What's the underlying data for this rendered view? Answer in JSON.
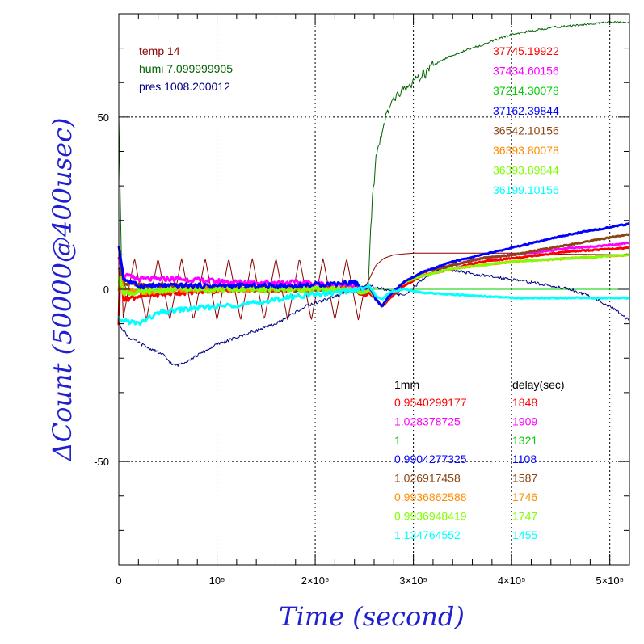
{
  "chart_data": {
    "type": "line",
    "xlabel": "Time (second)",
    "ylabel": "ΔCount (50000@400usec)",
    "xlim": [
      0,
      520000
    ],
    "ylim": [
      -80,
      80
    ],
    "grid": true,
    "x_ticks": [
      {
        "value": 0,
        "label": "0"
      },
      {
        "value": 100000,
        "label": "10⁵"
      },
      {
        "value": 200000,
        "label": "2×10⁵"
      },
      {
        "value": 300000,
        "label": "3×10⁵"
      },
      {
        "value": 400000,
        "label": "4×10⁵"
      },
      {
        "value": 500000,
        "label": "5×10⁵"
      }
    ],
    "y_ticks": [
      {
        "value": -50,
        "label": "-50"
      },
      {
        "value": 0,
        "label": "0"
      },
      {
        "value": 50,
        "label": "50"
      }
    ],
    "env_legend": [
      {
        "label": "temp 14",
        "color": "#8b0000"
      },
      {
        "label": "humi 7.099999905",
        "color": "#006400"
      },
      {
        "label": "pres 1008.200012",
        "color": "#000080"
      }
    ],
    "top_right_values": [
      {
        "label": "37745.19922",
        "color": "#ff0000"
      },
      {
        "label": "37434.60156",
        "color": "#ff00ff"
      },
      {
        "label": "37214.30078",
        "color": "#00cc00"
      },
      {
        "label": "37162.39844",
        "color": "#0000ff"
      },
      {
        "label": "36542.10156",
        "color": "#8b4513"
      },
      {
        "label": "36393.80078",
        "color": "#ff8c00"
      },
      {
        "label": "36393.89844",
        "color": "#7fff00"
      },
      {
        "label": "36199.10156",
        "color": "#00ffff"
      }
    ],
    "table_headers": [
      "1mm",
      "delay(sec)"
    ],
    "table_rows": [
      {
        "ratio": "0.9540299177",
        "delay": "1848",
        "color": "#ff0000"
      },
      {
        "ratio": "1.028378725",
        "delay": "1909",
        "color": "#ff00ff"
      },
      {
        "ratio": "1",
        "delay": "1321",
        "color": "#00cc00"
      },
      {
        "ratio": "0.9904277325",
        "delay": "1108",
        "color": "#0000ff"
      },
      {
        "ratio": "1.026917458",
        "delay": "1587",
        "color": "#8b4513"
      },
      {
        "ratio": "0.9936862588",
        "delay": "1746",
        "color": "#ff8c00"
      },
      {
        "ratio": "0.9936948419",
        "delay": "1747",
        "color": "#7fff00"
      },
      {
        "ratio": "1.134764552",
        "delay": "1455",
        "color": "#00ffff"
      }
    ],
    "series": [
      {
        "color": "#006400",
        "width": 1,
        "kind": "humi",
        "x": [
          0,
          3000,
          8000,
          20000,
          60000,
          100000,
          150000,
          200000,
          245000,
          254000,
          256000,
          258000,
          262000,
          267000,
          272000,
          280000,
          290000,
          300000,
          310000,
          320000,
          340000,
          360000,
          380000,
          400000,
          420000,
          440000,
          460000,
          480000,
          500000,
          520000
        ],
        "y": [
          50,
          3,
          0,
          -1,
          -1,
          0,
          0,
          0,
          0,
          0,
          15,
          25,
          38,
          45,
          50,
          55,
          58,
          60,
          62,
          65,
          68,
          70,
          72,
          74,
          75,
          76,
          76.5,
          77,
          77.5,
          77.5
        ]
      },
      {
        "color": "#00cc00",
        "width": 1,
        "kind": "flat",
        "x": [
          0,
          20000,
          100000,
          200000,
          255000,
          260000,
          520000
        ],
        "y": [
          0,
          0,
          0,
          0,
          0,
          0,
          0
        ]
      },
      {
        "color": "#8b0000",
        "width": 1,
        "kind": "temp",
        "x": [
          0,
          250000,
          255000,
          262000,
          270000,
          280000,
          300000,
          330000,
          360000,
          400000,
          450000,
          520000
        ],
        "y": [
          0,
          0,
          3,
          7,
          9,
          10,
          10.5,
          10.5,
          10.5,
          10.5,
          10.2,
          10
        ],
        "osc_amp": 9,
        "osc_period": 24000,
        "osc_end": 250000
      },
      {
        "color": "#000080",
        "width": 1,
        "kind": "pres",
        "x": [
          0,
          10000,
          30000,
          45000,
          55000,
          60000,
          75000,
          100000,
          130000,
          160000,
          190000,
          220000,
          240000,
          255000,
          270000,
          290000,
          310000,
          320000,
          330000,
          350000,
          370000,
          400000,
          420000,
          440000,
          460000,
          480000,
          500000,
          520000
        ],
        "y": [
          -10,
          -14,
          -17,
          -19,
          -22,
          -22,
          -20,
          -16,
          -13,
          -10,
          -5,
          -2,
          0,
          1,
          0,
          -2,
          3,
          5,
          6,
          5,
          4,
          3,
          2,
          1,
          0,
          -2,
          -5,
          -9
        ]
      },
      {
        "color": "#ff0000",
        "width": 3,
        "kind": "signal",
        "x": [
          0,
          1500,
          5000,
          20000,
          60000,
          120000,
          180000,
          240000,
          250000,
          255000,
          262000,
          268000,
          275000,
          290000,
          310000,
          340000,
          370000,
          400000,
          430000,
          460000,
          490000,
          520000
        ],
        "y": [
          -10,
          8,
          -3,
          -2,
          -1,
          0,
          0,
          0,
          -2,
          -1,
          -3,
          -5,
          -3,
          1,
          4,
          6,
          8,
          9,
          10,
          11,
          11.5,
          12
        ]
      },
      {
        "color": "#ff00ff",
        "width": 3,
        "kind": "signal",
        "x": [
          0,
          1500,
          5000,
          20000,
          60000,
          120000,
          180000,
          240000,
          250000,
          255000,
          262000,
          268000,
          275000,
          290000,
          310000,
          340000,
          370000,
          400000,
          430000,
          460000,
          490000,
          520000
        ],
        "y": [
          10,
          8,
          4,
          3,
          3,
          2,
          2,
          1,
          -1,
          0,
          -3,
          -5,
          -2,
          2,
          5,
          7,
          9,
          10,
          11,
          12,
          12.5,
          13.5
        ]
      },
      {
        "color": "#8b4513",
        "width": 3,
        "kind": "signal",
        "x": [
          0,
          1500,
          5000,
          20000,
          60000,
          120000,
          180000,
          240000,
          250000,
          255000,
          262000,
          268000,
          275000,
          290000,
          310000,
          340000,
          370000,
          400000,
          430000,
          460000,
          490000,
          520000
        ],
        "y": [
          5,
          6,
          2,
          1,
          1,
          0,
          0,
          0,
          -1,
          0,
          -3,
          -5,
          -2,
          2,
          5,
          7,
          9,
          10,
          11.5,
          13,
          14.5,
          16
        ]
      },
      {
        "color": "#ff8c00",
        "width": 3,
        "kind": "signal",
        "x": [
          0,
          1500,
          5000,
          20000,
          60000,
          120000,
          180000,
          240000,
          250000,
          255000,
          262000,
          268000,
          275000,
          290000,
          310000,
          340000,
          370000,
          400000,
          430000,
          460000,
          490000,
          520000
        ],
        "y": [
          0,
          4,
          0,
          -1,
          0,
          0,
          0,
          0,
          -1,
          0,
          -3,
          -5,
          -2,
          2,
          4,
          6,
          7,
          8,
          8.5,
          9,
          9.5,
          10
        ]
      },
      {
        "color": "#7fff00",
        "width": 3,
        "kind": "signal",
        "x": [
          0,
          1500,
          5000,
          20000,
          60000,
          120000,
          180000,
          240000,
          250000,
          255000,
          262000,
          268000,
          275000,
          290000,
          310000,
          340000,
          370000,
          400000,
          430000,
          460000,
          490000,
          520000
        ],
        "y": [
          2,
          3,
          -1,
          -1,
          0,
          0,
          0,
          0,
          -1,
          0,
          -3,
          -5,
          -2,
          2,
          4,
          6,
          7,
          8,
          8.5,
          9,
          9.5,
          10
        ]
      },
      {
        "color": "#0000ff",
        "width": 3,
        "kind": "signal",
        "x": [
          0,
          1500,
          5000,
          20000,
          60000,
          120000,
          180000,
          240000,
          250000,
          255000,
          262000,
          268000,
          275000,
          290000,
          310000,
          340000,
          370000,
          400000,
          430000,
          460000,
          490000,
          520000
        ],
        "y": [
          12,
          10,
          3,
          1,
          1,
          1,
          1,
          2,
          0,
          1,
          -3,
          -5,
          -2,
          2,
          5,
          8,
          10,
          12,
          14,
          16,
          17.5,
          19
        ]
      },
      {
        "color": "#00ffff",
        "width": 3,
        "kind": "signal",
        "x": [
          0,
          1500,
          5000,
          20000,
          40000,
          60000,
          100000,
          140000,
          180000,
          220000,
          245000,
          255000,
          262000,
          268000,
          275000,
          290000,
          310000,
          340000,
          370000,
          400000,
          430000,
          460000,
          490000,
          520000
        ],
        "y": [
          -8,
          -10,
          -9,
          -10,
          -7,
          -6,
          -5,
          -4,
          -2,
          -1,
          0,
          1,
          -2,
          -3,
          -1,
          0,
          -1,
          -1.5,
          -2,
          -2.5,
          -2.5,
          -2.5,
          -2.5,
          -2.5
        ]
      }
    ]
  }
}
